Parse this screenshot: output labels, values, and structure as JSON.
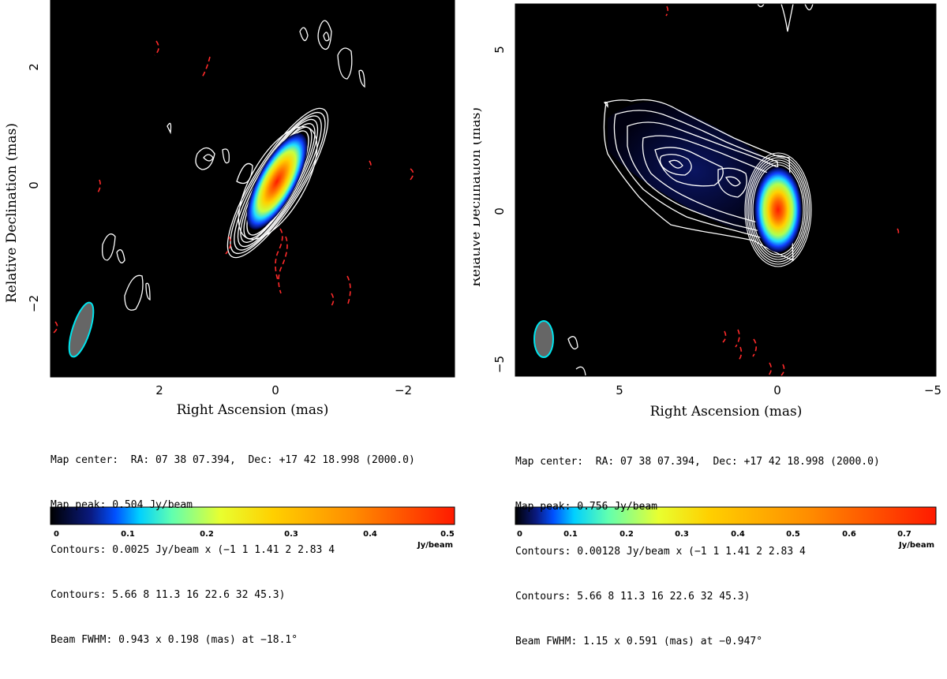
{
  "panels": [
    {
      "xlabel": "Right Ascension   (mas)",
      "ylabel": "Relative Declination   (mas)",
      "x_ticks": [
        "2",
        "0",
        "−2"
      ],
      "y_ticks": [
        "2",
        "0",
        "−2"
      ],
      "caption": [
        "Map center:  RA: 07 38 07.394,  Dec: +17 42 18.998 (2000.0)",
        "Map peak: 0.504 Jy/beam",
        "Contours: 0.0025 Jy/beam x (−1 1 1.41 2 2.83 4",
        "Contours: 5.66 8 11.3 16 22.6 32 45.3)",
        "Beam FWHM: 0.943 x 0.198 (mas) at −18.1°"
      ],
      "colorbar_ticks": [
        "0",
        "0.1",
        "0.2",
        "0.3",
        "0.4",
        "0.5"
      ],
      "colorbar_unit": "Jy/beam"
    },
    {
      "xlabel": "Right Ascension   (mas)",
      "ylabel": "Relative Declination   (mas)",
      "x_ticks": [
        "5",
        "0",
        "−5"
      ],
      "y_ticks": [
        "5",
        "0",
        "−5"
      ],
      "caption": [
        "Map center:  RA: 07 38 07.394,  Dec: +17 42 18.998 (2000.0)",
        "Map peak: 0.756 Jy/beam",
        "Contours: 0.00128 Jy/beam x (−1 1 1.41 2 2.83 4",
        "Contours: 5.66 8 11.3 16 22.6 32 45.3)",
        "Beam FWHM: 1.15 x 0.591 (mas) at −0.947°"
      ],
      "colorbar_ticks": [
        "0",
        "0.1",
        "0.2",
        "0.3",
        "0.4",
        "0.5",
        "0.6",
        "0.7"
      ],
      "colorbar_unit": "Jy/beam"
    }
  ],
  "chart_data": [
    {
      "type": "heatmap",
      "xlabel": "Right Ascension   (mas)",
      "ylabel": "Relative Declination   (mas)",
      "xlim": [
        3.9,
        -3.0
      ],
      "ylim": [
        -3.2,
        3.3
      ],
      "x_ticks": [
        2,
        0,
        -2
      ],
      "y_ticks": [
        2,
        0,
        -2
      ],
      "peak_position": [
        0.0,
        0.0
      ],
      "map_peak_jy_per_beam": 0.504,
      "contour_base_jy_per_beam": 0.0025,
      "contour_levels": [
        -1,
        1,
        1.41,
        2,
        2.83,
        4,
        5.66,
        8,
        11.3,
        16,
        22.6,
        32,
        45.3
      ],
      "beam": {
        "major_mas": 0.943,
        "minor_mas": 0.198,
        "pa_deg": -18.1
      },
      "colorbar": {
        "min": 0,
        "max": 0.52,
        "ticks": [
          0,
          0.1,
          0.2,
          0.3,
          0.4,
          0.5
        ],
        "unit": "Jy/beam"
      },
      "background": "#000000",
      "contour_color": "#ffffff",
      "negative_contour_color": "#ff2a2a",
      "beam_fill": "#666666",
      "beam_edge": "#00e5ee"
    },
    {
      "type": "heatmap",
      "xlabel": "Right Ascension   (mas)",
      "ylabel": "Relative Declination   (mas)",
      "xlim": [
        8.2,
        -5.0
      ],
      "ylim": [
        -5.4,
        7.0
      ],
      "x_ticks": [
        5,
        0,
        -5
      ],
      "y_ticks": [
        5,
        0,
        -5
      ],
      "peak_position": [
        0.0,
        0.0
      ],
      "jet_direction": "east (to the left)",
      "map_peak_jy_per_beam": 0.756,
      "contour_base_jy_per_beam": 0.00128,
      "contour_levels": [
        -1,
        1,
        1.41,
        2,
        2.83,
        4,
        5.66,
        8,
        11.3,
        16,
        22.6,
        32,
        45.3
      ],
      "beam": {
        "major_mas": 1.15,
        "minor_mas": 0.591,
        "pa_deg": -0.947
      },
      "colorbar": {
        "min": 0,
        "max": 0.76,
        "ticks": [
          0,
          0.1,
          0.2,
          0.3,
          0.4,
          0.5,
          0.6,
          0.7
        ],
        "unit": "Jy/beam"
      },
      "background": "#000000",
      "contour_color": "#ffffff",
      "negative_contour_color": "#ff2a2a",
      "beam_fill": "#666666",
      "beam_edge": "#00e5ee"
    }
  ]
}
